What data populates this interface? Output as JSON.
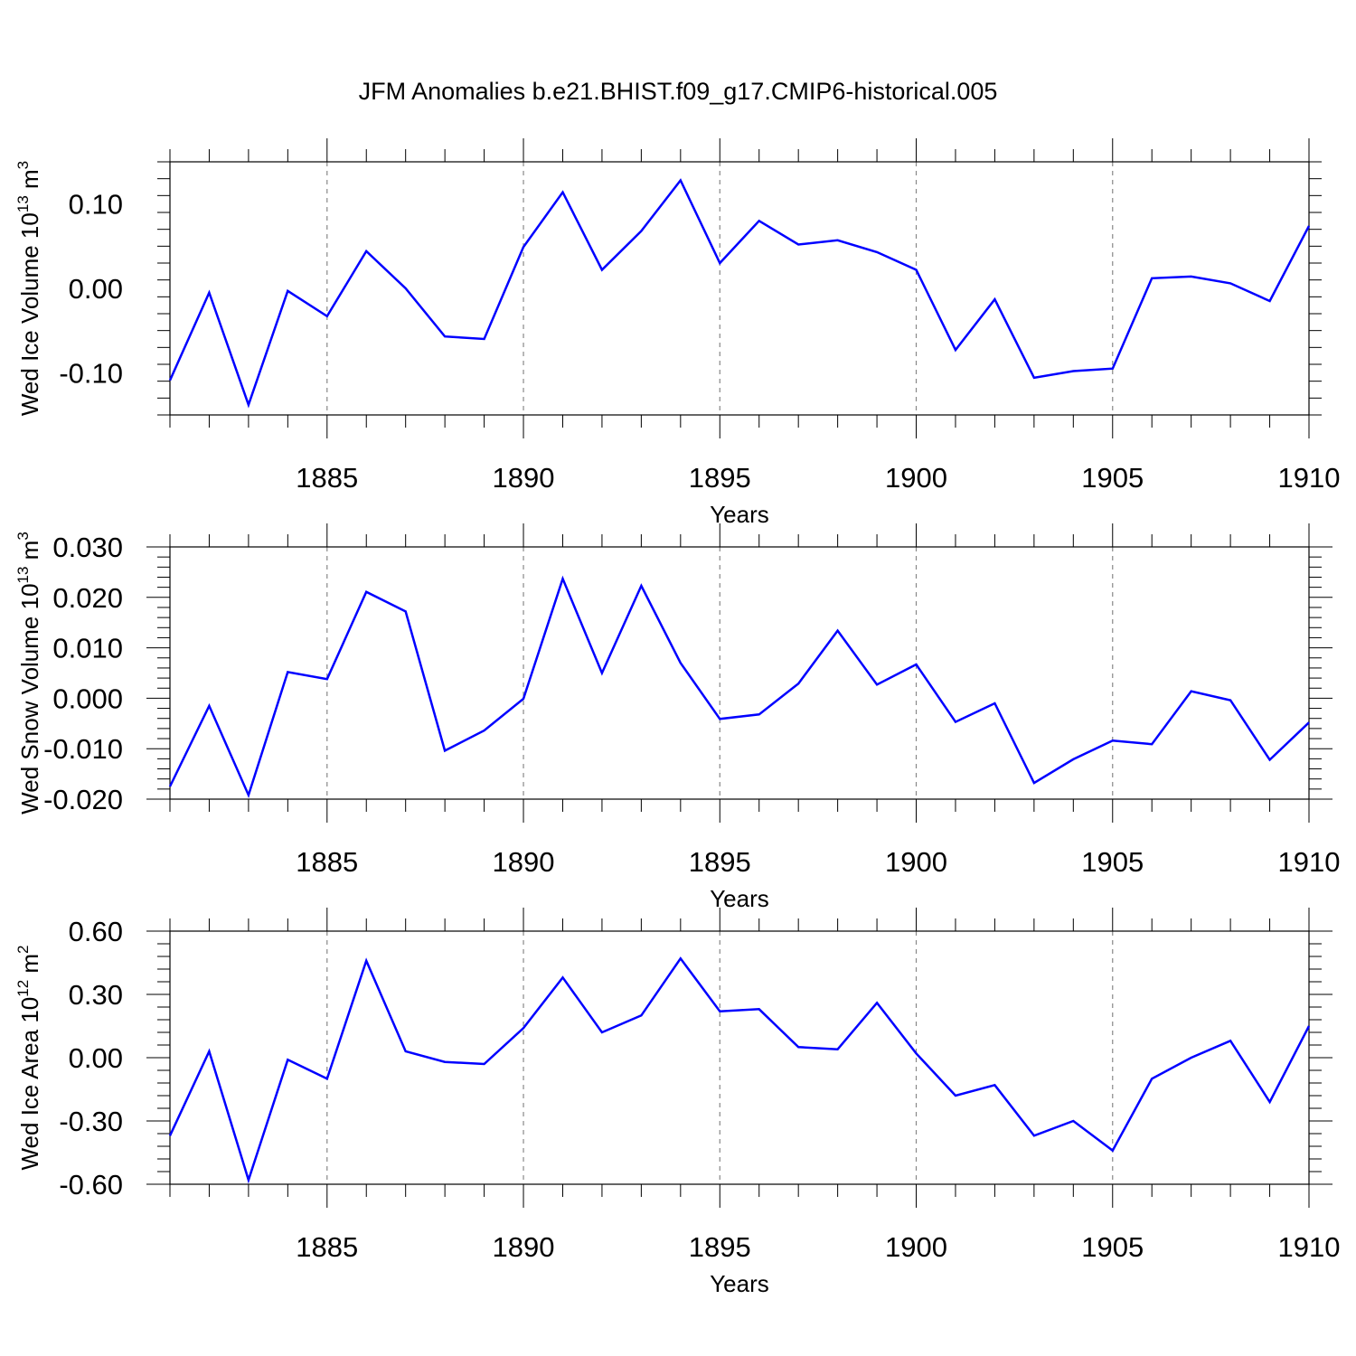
{
  "title": "JFM Anomalies b.e21.BHIST.f09_g17.CMIP6-historical.005",
  "colors": {
    "line": "#0000ff",
    "axis": "#000000",
    "grid": "#888888"
  },
  "chart_data": [
    {
      "type": "line",
      "xlabel": "Years",
      "ylabel": {
        "text": "Wed Ice Volume 10",
        "exponent": "13",
        "unit": " m",
        "unit_exponent": "3"
      },
      "xlim": [
        1881,
        1910
      ],
      "ylim": [
        -0.15,
        0.15
      ],
      "yticks": [
        -0.1,
        0.0,
        0.1
      ],
      "ytick_labels": [
        "-0.10",
        "0.00",
        "0.10"
      ],
      "xticks": [
        1885,
        1890,
        1895,
        1900,
        1905,
        1910
      ],
      "xtick_labels": [
        "1885",
        "1890",
        "1895",
        "1900",
        "1905",
        "1910"
      ],
      "grid": "vertical dashed at major x ticks",
      "x": [
        1881,
        1882,
        1883,
        1884,
        1885,
        1886,
        1887,
        1888,
        1889,
        1890,
        1891,
        1892,
        1893,
        1894,
        1895,
        1896,
        1897,
        1898,
        1899,
        1900,
        1901,
        1902,
        1903,
        1904,
        1905,
        1906,
        1907,
        1908,
        1909,
        1910
      ],
      "values": [
        -0.109,
        -0.005,
        -0.138,
        -0.003,
        -0.033,
        0.044,
        0.0,
        -0.057,
        -0.06,
        0.049,
        0.114,
        0.022,
        0.068,
        0.128,
        0.03,
        0.08,
        0.052,
        0.057,
        0.043,
        0.022,
        -0.073,
        -0.013,
        -0.106,
        -0.098,
        -0.095,
        0.012,
        0.014,
        0.006,
        -0.015,
        0.074
      ]
    },
    {
      "type": "line",
      "xlabel": "Years",
      "ylabel": {
        "text": "Wed Snow Volume 10",
        "exponent": "13",
        "unit": " m",
        "unit_exponent": "3"
      },
      "xlim": [
        1881,
        1910
      ],
      "ylim": [
        -0.02,
        0.03
      ],
      "yticks": [
        -0.02,
        -0.01,
        0.0,
        0.01,
        0.02,
        0.03
      ],
      "ytick_labels": [
        "-0.020",
        "-0.010",
        "0.000",
        "0.010",
        "0.020",
        "0.030"
      ],
      "xticks": [
        1885,
        1890,
        1895,
        1900,
        1905,
        1910
      ],
      "xtick_labels": [
        "1885",
        "1890",
        "1895",
        "1900",
        "1905",
        "1910"
      ],
      "grid": "vertical dashed at major x ticks",
      "x": [
        1881,
        1882,
        1883,
        1884,
        1885,
        1886,
        1887,
        1888,
        1889,
        1890,
        1891,
        1892,
        1893,
        1894,
        1895,
        1896,
        1897,
        1898,
        1899,
        1900,
        1901,
        1902,
        1903,
        1904,
        1905,
        1906,
        1907,
        1908,
        1909,
        1910
      ],
      "values": [
        -0.0175,
        -0.0015,
        -0.0192,
        0.0052,
        0.0038,
        0.0211,
        0.0172,
        -0.0104,
        -0.0064,
        -0.0001,
        0.0237,
        0.005,
        0.0223,
        0.007,
        -0.0041,
        -0.0032,
        0.0029,
        0.0134,
        0.0027,
        0.0067,
        -0.0047,
        -0.001,
        -0.0168,
        -0.0121,
        -0.0084,
        -0.0091,
        0.0014,
        -0.0004,
        -0.0122,
        -0.0048
      ]
    },
    {
      "type": "line",
      "xlabel": "Years",
      "ylabel": {
        "text": "Wed Ice Area 10",
        "exponent": "12",
        "unit": " m",
        "unit_exponent": "2"
      },
      "xlim": [
        1881,
        1910
      ],
      "ylim": [
        -0.6,
        0.6
      ],
      "yticks": [
        -0.6,
        -0.3,
        0.0,
        0.3,
        0.6
      ],
      "ytick_labels": [
        "-0.60",
        "-0.30",
        "0.00",
        "0.30",
        "0.60"
      ],
      "xticks": [
        1885,
        1890,
        1895,
        1900,
        1905,
        1910
      ],
      "xtick_labels": [
        "1885",
        "1890",
        "1895",
        "1900",
        "1905",
        "1910"
      ],
      "grid": "vertical dashed at major x ticks",
      "x": [
        1881,
        1882,
        1883,
        1884,
        1885,
        1886,
        1887,
        1888,
        1889,
        1890,
        1891,
        1892,
        1893,
        1894,
        1895,
        1896,
        1897,
        1898,
        1899,
        1900,
        1901,
        1902,
        1903,
        1904,
        1905,
        1906,
        1907,
        1908,
        1909,
        1910
      ],
      "values": [
        -0.37,
        0.03,
        -0.58,
        -0.01,
        -0.1,
        0.46,
        0.03,
        -0.02,
        -0.03,
        0.14,
        0.38,
        0.12,
        0.2,
        0.47,
        0.22,
        0.23,
        0.05,
        0.04,
        0.26,
        0.02,
        -0.18,
        -0.13,
        -0.37,
        -0.3,
        -0.44,
        -0.1,
        0.0,
        0.08,
        -0.21,
        0.15
      ]
    }
  ]
}
